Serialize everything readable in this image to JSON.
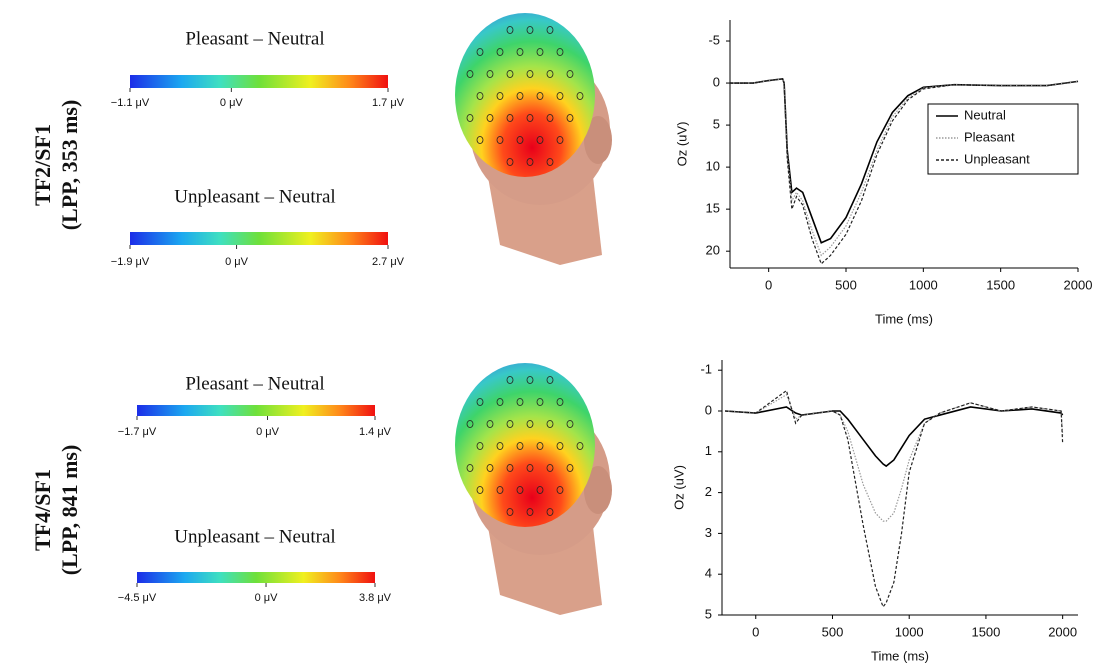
{
  "panels": [
    {
      "label": [
        "TF2/SF1",
        "(LPP, 353 ms)"
      ],
      "colorbars": [
        {
          "title": "Pleasant – Neutral",
          "ticks": [
            {
              "value": -1.1,
              "label": "−1.1 μV"
            },
            {
              "value": 0,
              "label": "0 μV"
            },
            {
              "value": 1.7,
              "label": "1.7 μV"
            }
          ]
        },
        {
          "title": "Unpleasant – Neutral",
          "ticks": [
            {
              "value": -1.9,
              "label": "−1.9 μV"
            },
            {
              "value": 0,
              "label": "0 μV"
            },
            {
              "value": 2.7,
              "label": "2.7 μV"
            }
          ]
        }
      ]
    },
    {
      "label": [
        "TF4/SF1",
        "(LPP, 841 ms)"
      ],
      "colorbars": [
        {
          "title": "Pleasant – Neutral",
          "ticks": [
            {
              "value": -1.7,
              "label": "−1.7 μV"
            },
            {
              "value": 0,
              "label": "0 μV"
            },
            {
              "value": 1.4,
              "label": "1.4 μV"
            }
          ]
        },
        {
          "title": "Unpleasant – Neutral",
          "ticks": [
            {
              "value": -4.5,
              "label": "−4.5 μV"
            },
            {
              "value": 0,
              "label": "0 μV"
            },
            {
              "value": 3.8,
              "label": "3.8 μV"
            }
          ]
        }
      ]
    }
  ],
  "chart_data": [
    {
      "type": "line",
      "xlabel": "Time (ms)",
      "ylabel": "Oz (uV)",
      "xlim": [
        -250,
        2000
      ],
      "ylim": [
        -7.5,
        22
      ],
      "y_inverted": true,
      "xticks": [
        0,
        500,
        1000,
        1500,
        2000
      ],
      "yticks": [
        -5,
        0,
        5,
        10,
        15,
        20
      ],
      "legend": "right",
      "x": [
        -250,
        -100,
        0,
        90,
        100,
        120,
        150,
        180,
        220,
        280,
        340,
        400,
        500,
        600,
        700,
        800,
        900,
        1000,
        1200,
        1500,
        1800,
        2000
      ],
      "series": [
        {
          "name": "Neutral",
          "color": "#000000",
          "dash": "none",
          "values": [
            0,
            0,
            -0.3,
            -0.5,
            0,
            8,
            13,
            12.5,
            13,
            16,
            19,
            18.5,
            16,
            12,
            7,
            3.5,
            1.5,
            0.5,
            0.2,
            0.3,
            0.3,
            -0.2
          ]
        },
        {
          "name": "Pleasant",
          "color": "#9a9a9a",
          "dash": "1.5,1.5",
          "values": [
            0,
            0,
            -0.3,
            -0.5,
            0,
            8.5,
            14,
            13,
            14,
            17.5,
            20.5,
            19.5,
            17,
            13,
            8,
            4,
            1.8,
            0.6,
            0.2,
            0.3,
            0.3,
            -0.2
          ]
        },
        {
          "name": "Unpleasant",
          "color": "#222222",
          "dash": "3,2",
          "values": [
            0,
            0,
            -0.3,
            -0.5,
            0,
            9,
            15,
            13.5,
            14.5,
            18.5,
            21.5,
            20.5,
            18,
            14,
            8.5,
            4.5,
            2,
            0.7,
            0.2,
            0.3,
            0.3,
            -0.2
          ]
        }
      ]
    },
    {
      "type": "line",
      "xlabel": "Time (ms)",
      "ylabel": "Oz (uV)",
      "xlim": [
        -220,
        2100
      ],
      "ylim": [
        -1.25,
        5
      ],
      "y_inverted": true,
      "xticks": [
        0,
        500,
        1000,
        1500,
        2000
      ],
      "yticks": [
        -1,
        0,
        1,
        2,
        3,
        4,
        5
      ],
      "x": [
        -200,
        0,
        200,
        260,
        300,
        500,
        550,
        600,
        700,
        780,
        830,
        850,
        900,
        950,
        1000,
        1100,
        1200,
        1400,
        1600,
        1800,
        1990,
        2000
      ],
      "series": [
        {
          "color": "#000000",
          "dash": "none",
          "values": [
            0,
            0.05,
            -0.1,
            0.05,
            0.1,
            0,
            0,
            0.2,
            0.7,
            1.1,
            1.3,
            1.35,
            1.2,
            0.9,
            0.6,
            0.2,
            0.1,
            -0.1,
            0,
            -0.05,
            0.05,
            0.1
          ]
        },
        {
          "color": "#9a9a9a",
          "dash": "1.5,1.5",
          "values": [
            0,
            0.05,
            -0.4,
            0.2,
            0.1,
            0,
            0.1,
            0.5,
            1.8,
            2.5,
            2.7,
            2.7,
            2.5,
            1.9,
            1.2,
            0.3,
            0.05,
            -0.2,
            0,
            -0.1,
            0,
            0.6
          ]
        },
        {
          "color": "#222222",
          "dash": "3,2",
          "values": [
            0,
            0.05,
            -0.5,
            0.3,
            0.1,
            0,
            0.1,
            0.7,
            2.8,
            4.3,
            4.8,
            4.7,
            4.2,
            3,
            1.5,
            0.3,
            0.05,
            -0.2,
            0,
            -0.1,
            0,
            0.8
          ]
        }
      ]
    }
  ]
}
